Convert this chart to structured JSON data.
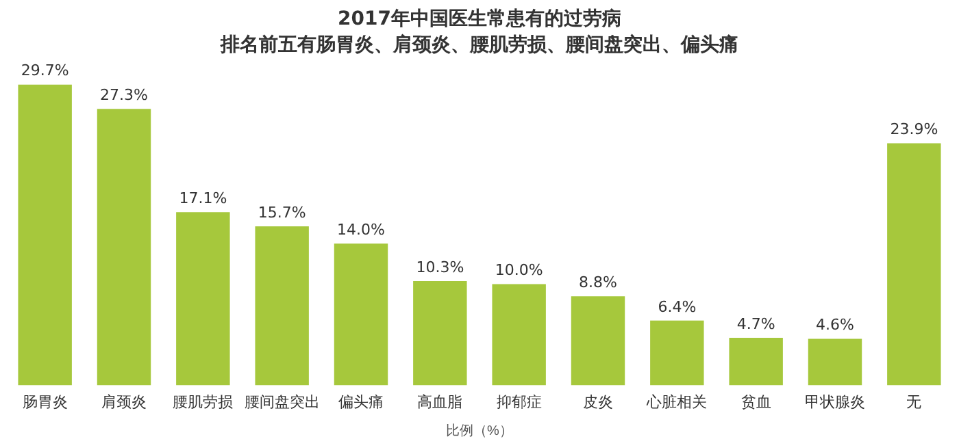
{
  "chart_data": {
    "type": "bar",
    "title": "2017年中国医生常患有的过劳病",
    "subtitle": "排名前五有肠胃炎、肩颈炎、腰肌劳损、腰间盘突出、偏头痛",
    "xlabel": "比例（%）",
    "categories": [
      "肠胃炎",
      "肩颈炎",
      "腰肌劳损",
      "腰间盘突出",
      "偏头痛",
      "高血脂",
      "抑郁症",
      "皮炎",
      "心脏相关",
      "贫血",
      "甲状腺炎",
      "无"
    ],
    "values": [
      29.7,
      27.3,
      17.1,
      15.7,
      14.0,
      10.3,
      10.0,
      8.8,
      6.4,
      4.7,
      4.6,
      23.9
    ],
    "value_labels": [
      "29.7%",
      "27.3%",
      "17.1%",
      "15.7%",
      "14.0%",
      "10.3%",
      "10.0%",
      "8.8%",
      "6.4%",
      "4.7%",
      "4.6%",
      "23.9%"
    ],
    "color": "#a6c83c",
    "tick_labels": "x",
    "grid": false,
    "legend": false
  }
}
